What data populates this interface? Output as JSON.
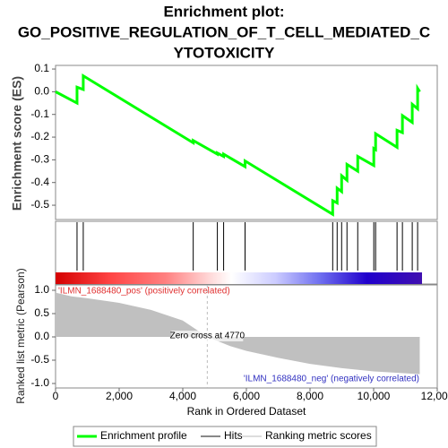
{
  "chart_data": [
    {
      "type": "line",
      "title": [
        "Enrichment plot:",
        "GO_POSITIVE_REGULATION_OF_T_CELL_MEDIATED_C",
        "YTOTOXICITY"
      ],
      "ylabel": "Enrichment score (ES)",
      "xlim": [
        0,
        12000
      ],
      "ylim": [
        -0.563,
        0.116
      ],
      "yticks": [
        0.1,
        {
          "value": 0,
          "label": "0.0"
        },
        -0.1,
        -0.2,
        -0.3,
        -0.4,
        -0.5
      ],
      "series": [
        {
          "name": "Enrichment profile",
          "color": "#00ff00",
          "x": [
            0,
            675,
            675,
            871,
            871,
            4328,
            4328,
            5087,
            5087,
            5284,
            5284,
            5958,
            5958,
            8713,
            8713,
            8853,
            8853,
            8994,
            8994,
            9162,
            9162,
            9500,
            9500,
            10005,
            10005,
            10062,
            10062,
            10736,
            10736,
            10905,
            10905,
            11214,
            11214,
            11383,
            11383,
            11450
          ],
          "values": [
            0,
            -0.05,
            0.02,
            0.01,
            0.07,
            -0.225,
            -0.215,
            -0.275,
            -0.27,
            -0.285,
            -0.275,
            -0.33,
            -0.305,
            -0.54,
            -0.48,
            -0.49,
            -0.425,
            -0.44,
            -0.37,
            -0.39,
            -0.32,
            -0.35,
            -0.285,
            -0.325,
            -0.25,
            -0.255,
            -0.185,
            -0.245,
            -0.17,
            -0.18,
            -0.105,
            -0.135,
            -0.055,
            -0.075,
            0.015,
            0.0
          ]
        }
      ]
    },
    {
      "type": "hits",
      "xlim": [
        0,
        12000
      ],
      "series": [
        {
          "name": "Hits",
          "color": "#000000",
          "x": [
            675,
            871,
            4328,
            5087,
            5284,
            5958,
            8713,
            8853,
            8994,
            9162,
            9500,
            10005,
            10062,
            10736,
            10905,
            11214,
            11383
          ]
        }
      ]
    },
    {
      "type": "area",
      "ylabel": "Ranked list metric (Pearson)",
      "xlabel": "Rank in Ordered Dataset",
      "xlim": [
        0,
        12000
      ],
      "xticks": [
        0,
        {
          "value": 2000,
          "label": "2,000"
        },
        {
          "value": 4000,
          "label": "4,000"
        },
        {
          "value": 6000,
          "label": "6,000"
        },
        {
          "value": 8000,
          "label": "8,000"
        },
        {
          "value": 10000,
          "label": "10,000"
        },
        {
          "value": 12000,
          "label": "12,000"
        }
      ],
      "ylim": [
        -1.096,
        1.115
      ],
      "yticks": [
        {
          "value": 1,
          "label": "1.0"
        },
        0.5,
        {
          "value": 0,
          "label": "0.0"
        },
        -0.5,
        {
          "value": -1,
          "label": "-1.0"
        }
      ],
      "series": [
        {
          "name": "Ranking metric scores",
          "color": "#c0c0c0",
          "x": [
            0,
            500,
            1000,
            2000,
            3000,
            4000,
            4770,
            5500,
            6000,
            7000,
            8000,
            9000,
            10000,
            11000,
            11450
          ],
          "values": [
            0.95,
            0.87,
            0.83,
            0.73,
            0.58,
            0.35,
            0,
            -0.2,
            -0.3,
            -0.45,
            -0.58,
            -0.67,
            -0.74,
            -0.78,
            -0.8
          ]
        }
      ],
      "pos_label": "'ILMN_1688480_pos' (positively correlated)",
      "neg_label": "'ILMN_1688480_neg' (negatively correlated)",
      "zero_cross": {
        "value": 4770,
        "label": "Zero cross at 4770"
      },
      "legend": "bottom"
    }
  ]
}
